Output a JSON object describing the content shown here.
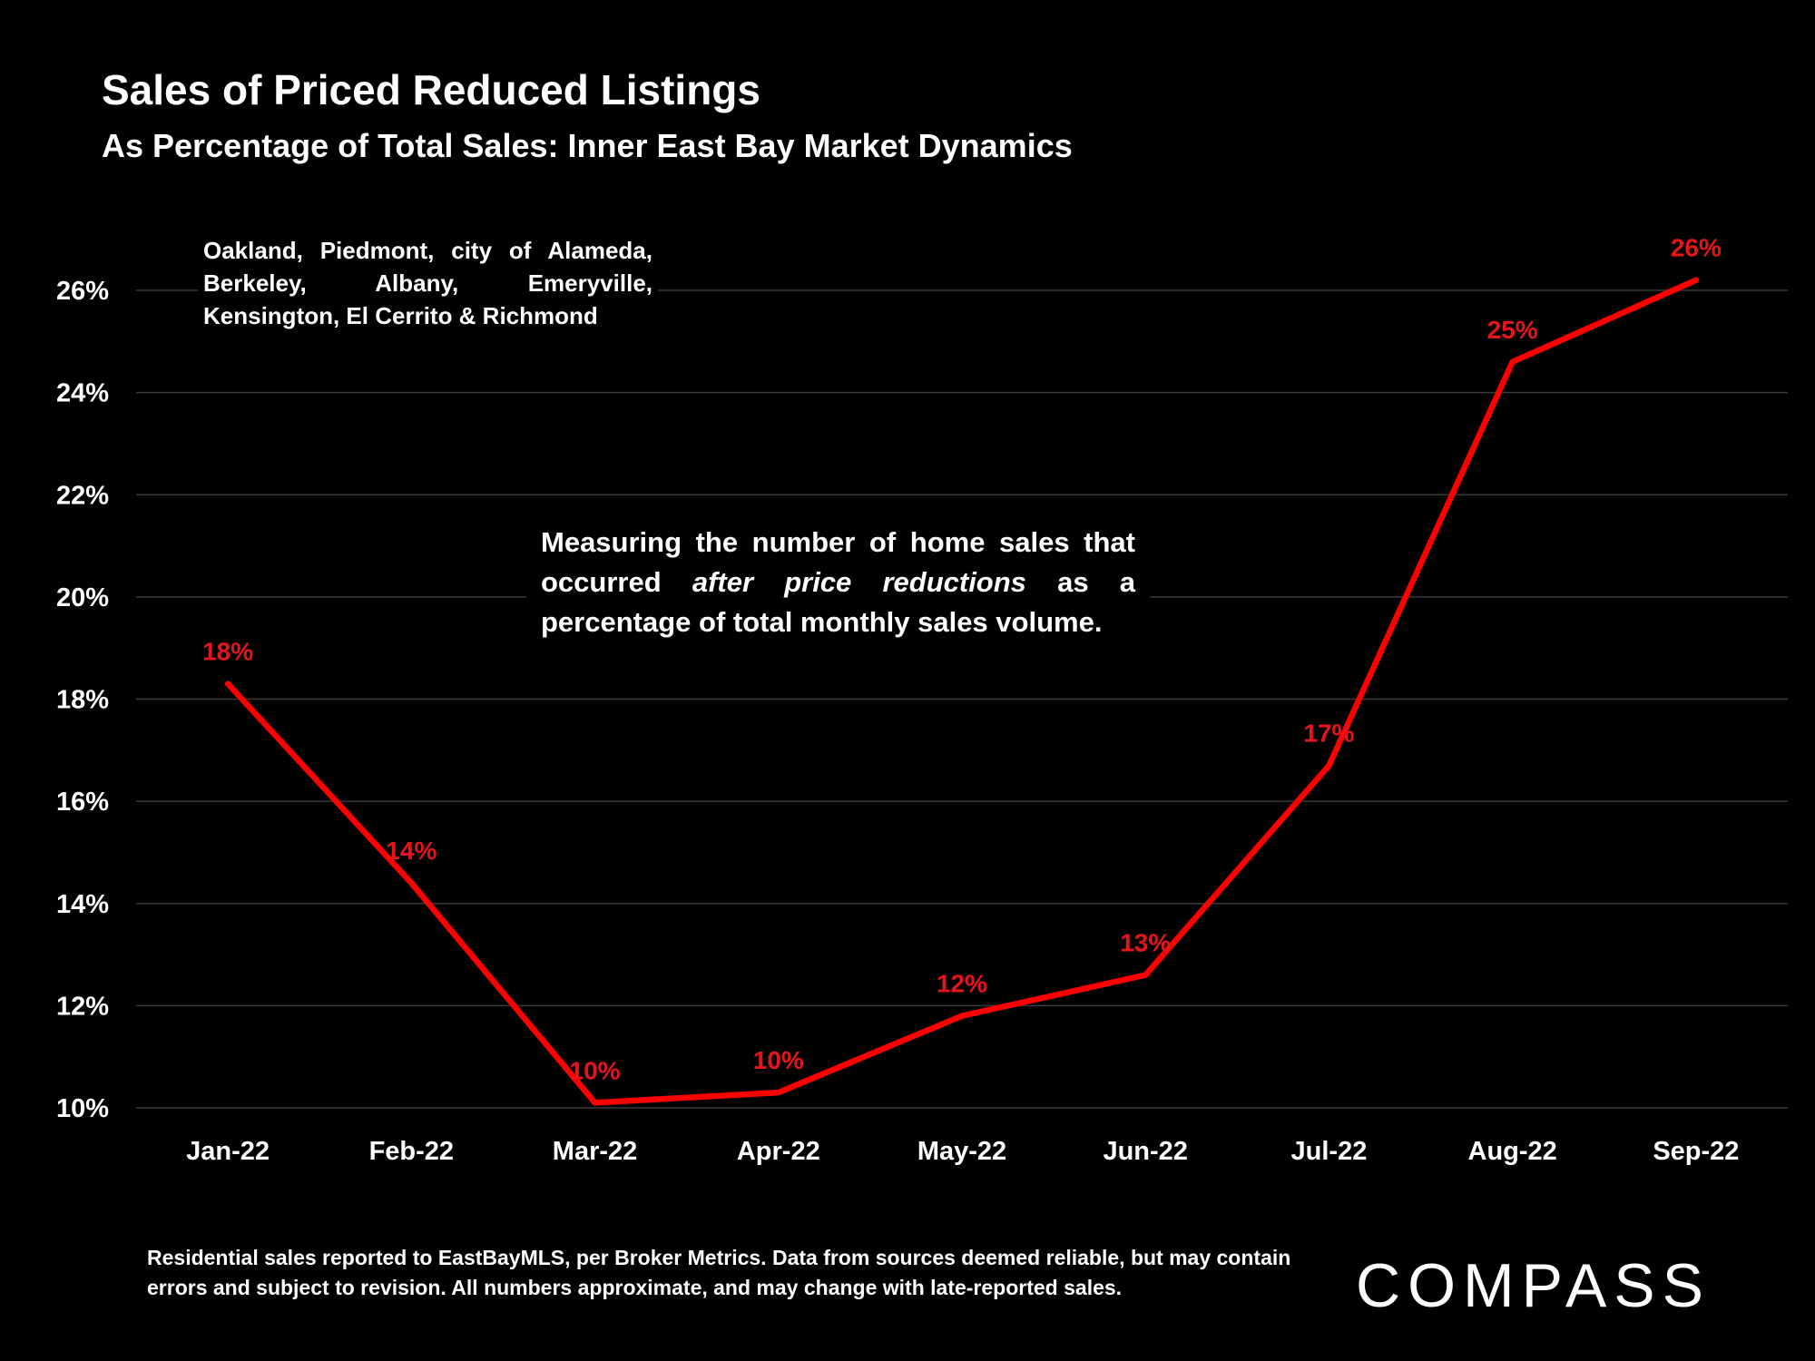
{
  "header": {
    "title": "Sales of Priced Reduced Listings",
    "subtitle": "As Percentage of Total Sales:  Inner East Bay Market Dynamics"
  },
  "annotations": {
    "region": "Oakland, Piedmont, city of Alameda, Berkeley, Albany, Emeryville, Kensington, El Cerrito & Richmond",
    "measure_before": "Measuring the number of home sales that occurred ",
    "measure_emphasis": "after price reductions",
    "measure_after": " as a percentage of total monthly sales volume."
  },
  "footer": {
    "note": "Residential sales reported to EastBayMLS, per Broker Metrics. Data from sources deemed reliable, but may contain errors and subject to revision. All numbers approximate, and may change with late-reported sales.",
    "logo": "COMPASS"
  },
  "colors": {
    "background": "#000000",
    "series": "#ff0000",
    "data_label": "#e8141c",
    "grid": "#3a3a3a",
    "text": "#ffffff"
  },
  "chart_data": {
    "type": "line",
    "categories": [
      "Jan-22",
      "Feb-22",
      "Mar-22",
      "Apr-22",
      "May-22",
      "Jun-22",
      "Jul-22",
      "Aug-22",
      "Sep-22"
    ],
    "series": [
      {
        "values": [
          18.3,
          14.4,
          10.1,
          10.3,
          11.8,
          12.6,
          16.7,
          24.6,
          26.2
        ],
        "labels": [
          "18%",
          "14%",
          "10%",
          "10%",
          "12%",
          "13%",
          "17%",
          "25%",
          "26%"
        ]
      }
    ],
    "ylim": [
      10,
      26
    ],
    "yticks": [
      10,
      12,
      14,
      16,
      18,
      20,
      22,
      24,
      26
    ],
    "ytick_labels": [
      "10%",
      "12%",
      "14%",
      "16%",
      "18%",
      "20%",
      "22%",
      "24%",
      "26%"
    ],
    "grid": true,
    "legend": false
  }
}
